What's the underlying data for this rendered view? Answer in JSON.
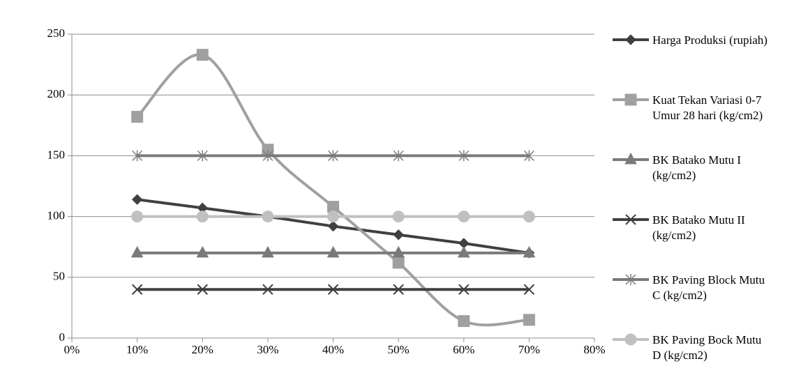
{
  "chart_data": {
    "type": "line",
    "x": [
      10,
      20,
      30,
      40,
      50,
      60,
      70
    ],
    "xlim": [
      0,
      80
    ],
    "xticks": [
      {
        "value": 0,
        "label": "0%"
      },
      {
        "value": 10,
        "label": "10%"
      },
      {
        "value": 20,
        "label": "20%"
      },
      {
        "value": 30,
        "label": "30%"
      },
      {
        "value": 40,
        "label": "40%"
      },
      {
        "value": 50,
        "label": "50%"
      },
      {
        "value": 60,
        "label": "60%"
      },
      {
        "value": 70,
        "label": "70%"
      },
      {
        "value": 80,
        "label": "80%"
      }
    ],
    "ylim": [
      0,
      250
    ],
    "yticks": [
      0,
      50,
      100,
      150,
      200,
      250
    ],
    "grid": true,
    "legend": "right",
    "series": [
      {
        "name": "Harga Produksi (rupiah)",
        "color": "#404040",
        "marker": "diamond",
        "smooth": false,
        "values": [
          114,
          107,
          100,
          92,
          85,
          78,
          70
        ]
      },
      {
        "name": "Kuat Tekan Variasi 0-7 Umur 28 hari (kg/cm2)",
        "color": "#a0a0a0",
        "marker": "square",
        "smooth": true,
        "values": [
          182,
          233,
          155,
          108,
          62,
          14,
          15
        ]
      },
      {
        "name": "BK Batako Mutu I (kg/cm2)",
        "color": "#7a7a7a",
        "marker": "triangle",
        "smooth": false,
        "values": [
          70,
          70,
          70,
          70,
          70,
          70,
          70
        ]
      },
      {
        "name": "BK Batako Mutu II (kg/cm2)",
        "color": "#404040",
        "marker": "x",
        "smooth": false,
        "values": [
          40,
          40,
          40,
          40,
          40,
          40,
          40
        ]
      },
      {
        "name": "BK Paving Block Mutu C (kg/cm2)",
        "color": "#7a7a7a",
        "marker": "star",
        "smooth": false,
        "values": [
          150,
          150,
          150,
          150,
          150,
          150,
          150
        ]
      },
      {
        "name": "BK Paving Bock Mutu D (kg/cm2)",
        "color": "#c0c0c0",
        "marker": "circle",
        "smooth": false,
        "values": [
          100,
          100,
          100,
          100,
          100,
          100,
          100
        ]
      }
    ]
  }
}
